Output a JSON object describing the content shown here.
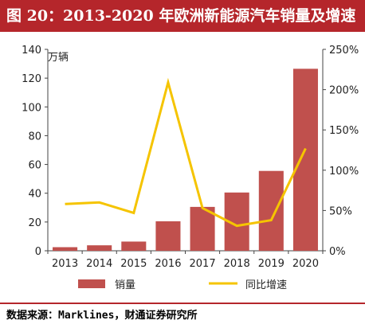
{
  "title": "图 20：2013-2020 年欧洲新能源汽车销量及增速",
  "source": "数据来源：Marklines，财通证券研究所",
  "colors": {
    "brand": "#b5262b",
    "bar": "#c0504d",
    "line": "#f5c400"
  },
  "chart_data": {
    "type": "bar",
    "categories": [
      "2013",
      "2014",
      "2015",
      "2016",
      "2017",
      "2018",
      "2019",
      "2020"
    ],
    "series": [
      {
        "name": "销量",
        "type": "bar",
        "axis": "left",
        "values": [
          2.5,
          3.8,
          6.4,
          20.5,
          30.5,
          40.5,
          55.5,
          126.5
        ]
      },
      {
        "name": "同比增速",
        "type": "line",
        "axis": "right",
        "values": [
          0.58,
          0.6,
          0.47,
          2.09,
          0.53,
          0.31,
          0.38,
          1.27
        ]
      }
    ],
    "ylabel": "万辆",
    "ylim": [
      0,
      140
    ],
    "yticks": [
      "0",
      "20",
      "40",
      "60",
      "80",
      "100",
      "120",
      "140"
    ],
    "y2lim": [
      0,
      2.5
    ],
    "y2ticks": [
      "0%",
      "50%",
      "100%",
      "150%",
      "200%",
      "250%"
    ],
    "legend": "bottom",
    "grid": false
  }
}
